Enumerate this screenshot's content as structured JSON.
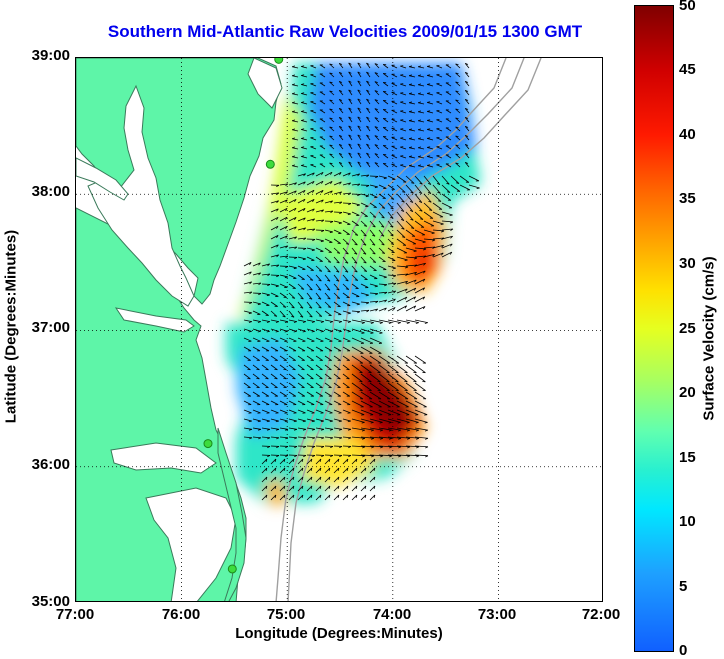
{
  "title": "Southern Mid-Atlantic Raw Velocities 2009/01/15 1300 GMT",
  "axes": {
    "xlabel": "Longitude (Degrees:Minutes)",
    "ylabel": "Latitude (Degrees:Minutes)",
    "x_ticks": [
      "77:00",
      "76:00",
      "75:00",
      "74:00",
      "73:00",
      "72:00"
    ],
    "y_ticks": [
      "39:00",
      "38:00",
      "37:00",
      "36:00",
      "35:00"
    ],
    "x_range_deg_west": [
      77,
      72
    ],
    "y_range_deg_north": [
      35,
      39
    ],
    "grid": "dotted"
  },
  "colorbar": {
    "label": "Surface Velocity (cm/s)",
    "ticks": [
      "50",
      "45",
      "40",
      "35",
      "30",
      "25",
      "20",
      "15",
      "10",
      "5",
      "0"
    ],
    "range": [
      0,
      50
    ]
  },
  "colors": {
    "land": "#5ef5a8",
    "coast_line": "#3a7a5a",
    "bathymetry": "#a0a0a0",
    "station": "#3ddc3d",
    "arrow": "#000000",
    "title": "#0000ee"
  },
  "stations": [
    {
      "lon": -75.08,
      "lat": 38.99
    },
    {
      "lon": -75.16,
      "lat": 38.22
    },
    {
      "lon": -75.75,
      "lat": 36.17
    },
    {
      "lon": -75.52,
      "lat": 35.25
    }
  ]
}
